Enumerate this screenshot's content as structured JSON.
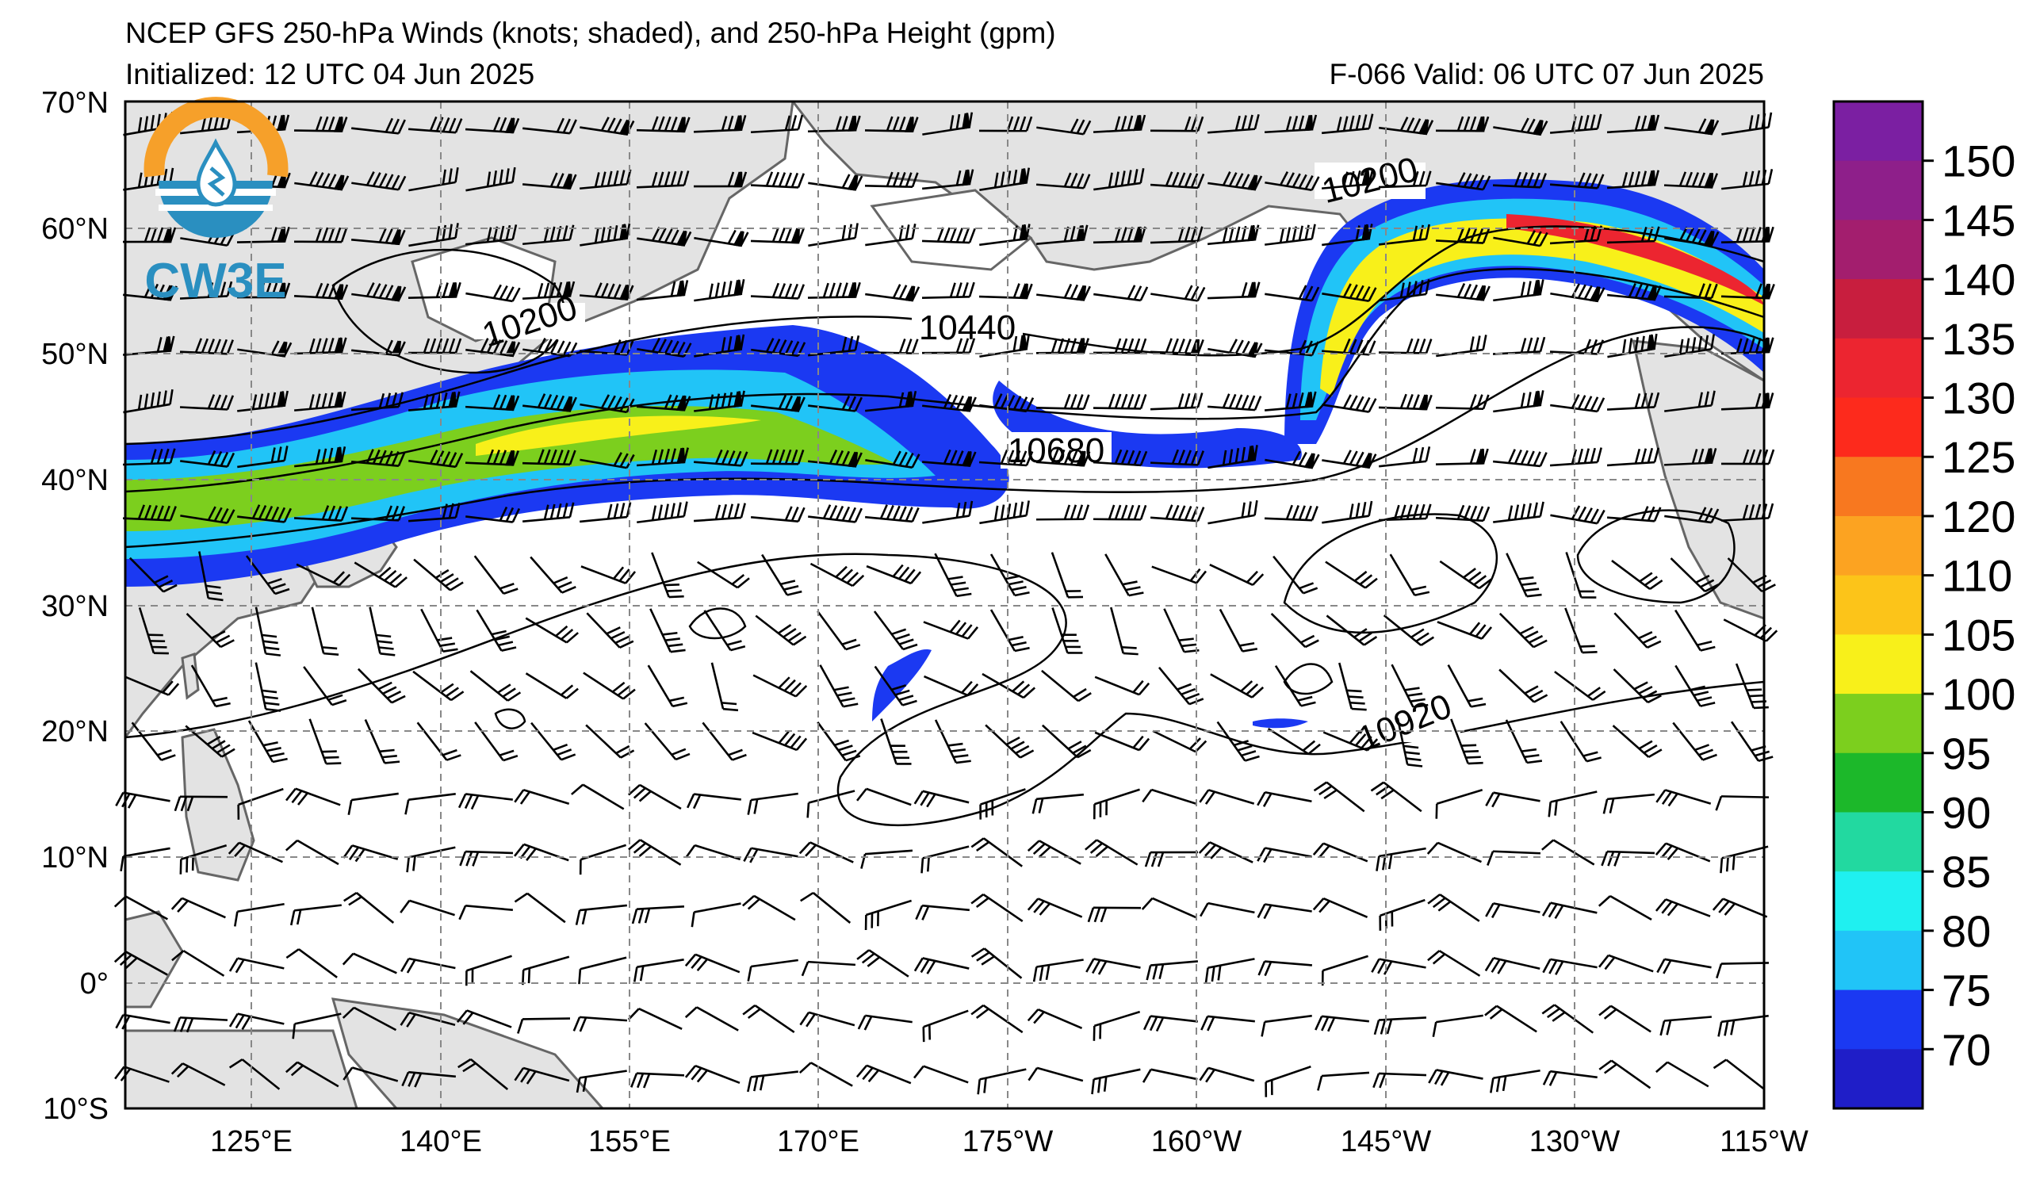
{
  "header": {
    "title": "NCEP GFS 250-hPa Winds (knots; shaded), and 250-hPa Height (gpm)",
    "initialized": "Initialized: 12 UTC 04 Jun 2025",
    "valid": "F-066  Valid: 06 UTC 07 Jun 2025"
  },
  "logo": {
    "text": "CW3E",
    "ring_color": "#f6a02a",
    "sea_color": "#2a8fc0"
  },
  "axes": {
    "lat_labels": [
      "70°N",
      "60°N",
      "50°N",
      "40°N",
      "30°N",
      "20°N",
      "10°N",
      "0°",
      "10°S"
    ],
    "lon_labels": [
      "125°E",
      "140°E",
      "155°E",
      "170°E",
      "175°W",
      "160°W",
      "145°W",
      "130°W",
      "115°W"
    ],
    "lat_range": [
      -10,
      70
    ],
    "lon_range": [
      115,
      245
    ],
    "grid": true
  },
  "contour_labels": [
    "10200",
    "10200",
    "10440",
    "10680",
    "10920"
  ],
  "colorbar": {
    "labels": [
      "150",
      "145",
      "140",
      "135",
      "130",
      "125",
      "120",
      "110",
      "105",
      "100",
      "95",
      "90",
      "85",
      "80",
      "75",
      "70"
    ],
    "colors": [
      "#7b1fa2",
      "#8e1f8a",
      "#a31e6e",
      "#c81e3e",
      "#ec2530",
      "#fd2a1c",
      "#f8781f",
      "#fca321",
      "#fcc419",
      "#f8f01a",
      "#7ccf1e",
      "#1cb82a",
      "#22d9a0",
      "#1ff0f0",
      "#21c4f7",
      "#1b39f2",
      "#1f1ec8"
    ]
  },
  "land_color": "#e3e3e3",
  "coast_color": "#666666"
}
